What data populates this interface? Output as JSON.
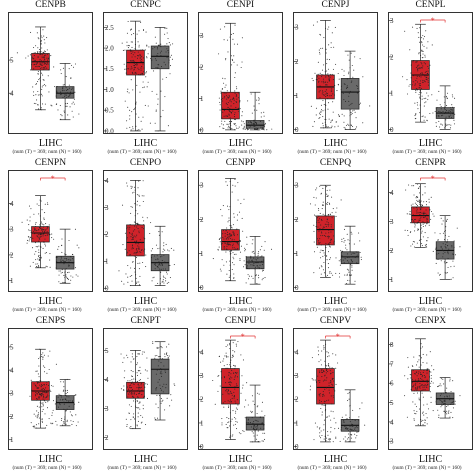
{
  "colors": {
    "tumor": "#d0232a",
    "normal": "#6a6a6a",
    "points": "#222222",
    "sig": "#e03030"
  },
  "chart_data": [
    {
      "type": "box",
      "title": "CENPB",
      "xlabel": "LIHC",
      "caption": "(num (T) = 369; num (N) = 160)",
      "ylim": [
        2.8,
        6.3
      ],
      "yticks": [
        4,
        5
      ],
      "tumor": {
        "min": 3.5,
        "q1": 4.7,
        "median": 4.95,
        "q3": 5.2,
        "max": 6.0
      },
      "normal": {
        "min": 3.2,
        "q1": 3.85,
        "median": 4.0,
        "q3": 4.2,
        "max": 4.9
      },
      "significant": false
    },
    {
      "type": "box",
      "title": "CENPC",
      "xlabel": "LIHC",
      "caption": "(num (T) = 369; num (N) = 160)",
      "ylim": [
        -0.05,
        2.75
      ],
      "yticks": [
        0.0,
        0.5,
        1.0,
        1.5,
        2.0,
        2.5
      ],
      "tick_format": "0.0",
      "tumor": {
        "min": 0.0,
        "q1": 1.35,
        "median": 1.65,
        "q3": 1.95,
        "max": 2.65
      },
      "normal": {
        "min": 0.0,
        "q1": 1.5,
        "median": 1.8,
        "q3": 2.05,
        "max": 2.5
      },
      "significant": false
    },
    {
      "type": "box",
      "title": "CENPI",
      "xlabel": "LIHC",
      "caption": "(num (T) = 369; num (N) = 160)",
      "ylim": [
        -0.1,
        3.6
      ],
      "yticks": [
        0,
        1,
        2,
        3
      ],
      "tumor": {
        "min": 0.0,
        "q1": 0.35,
        "median": 0.65,
        "q3": 1.2,
        "max": 3.4
      },
      "normal": {
        "min": 0.0,
        "q1": 0.05,
        "median": 0.15,
        "q3": 0.3,
        "max": 1.2
      },
      "significant": false
    },
    {
      "type": "box",
      "title": "CENPJ",
      "xlabel": "LIHC",
      "caption": "(num (T) = 369; num (N) = 160)",
      "ylim": [
        -0.1,
        3.3
      ],
      "yticks": [
        0,
        1,
        2,
        3
      ],
      "tumor": {
        "min": 0.05,
        "q1": 0.9,
        "median": 1.25,
        "q3": 1.6,
        "max": 3.2
      },
      "normal": {
        "min": 0.0,
        "q1": 0.6,
        "median": 1.1,
        "q3": 1.5,
        "max": 2.3
      },
      "significant": false
    },
    {
      "type": "box",
      "title": "CENPL",
      "xlabel": "LIHC",
      "caption": "(num (T) = 369; num (N) = 160)",
      "ylim": [
        -0.1,
        3.1
      ],
      "yticks": [
        0,
        1,
        2,
        3
      ],
      "tumor": {
        "min": 0.2,
        "q1": 1.1,
        "median": 1.5,
        "q3": 1.9,
        "max": 2.9
      },
      "normal": {
        "min": 0.0,
        "q1": 0.3,
        "median": 0.45,
        "q3": 0.6,
        "max": 1.2
      },
      "significant": true,
      "sig_label": "*"
    },
    {
      "type": "box",
      "title": "CENPN",
      "xlabel": "LIHC",
      "caption": "(num (T) = 369; num (N) = 160)",
      "ylim": [
        0.6,
        5.1
      ],
      "yticks": [
        1,
        2,
        3,
        4
      ],
      "tumor": {
        "min": 1.5,
        "q1": 2.5,
        "median": 2.85,
        "q3": 3.1,
        "max": 4.3
      },
      "normal": {
        "min": 0.9,
        "q1": 1.45,
        "median": 1.7,
        "q3": 1.95,
        "max": 3.0
      },
      "significant": true,
      "sig_label": "*"
    },
    {
      "type": "box",
      "title": "CENPO",
      "xlabel": "LIHC",
      "caption": "(num (T) = 369; num (N) = 160)",
      "ylim": [
        -0.1,
        4.2
      ],
      "yticks": [
        0,
        1,
        2,
        3,
        4
      ],
      "tumor": {
        "min": 0.1,
        "q1": 1.2,
        "median": 1.7,
        "q3": 2.35,
        "max": 4.0
      },
      "normal": {
        "min": 0.1,
        "q1": 0.65,
        "median": 0.95,
        "q3": 1.25,
        "max": 2.3
      },
      "significant": false
    },
    {
      "type": "box",
      "title": "CENPP",
      "xlabel": "LIHC",
      "caption": "(num (T) = 369; num (N) = 160)",
      "ylim": [
        -0.1,
        3.3
      ],
      "yticks": [
        0,
        1,
        2,
        3
      ],
      "tumor": {
        "min": 0.2,
        "q1": 1.1,
        "median": 1.35,
        "q3": 1.7,
        "max": 3.2
      },
      "normal": {
        "min": 0.1,
        "q1": 0.55,
        "median": 0.75,
        "q3": 0.9,
        "max": 1.5
      },
      "significant": false
    },
    {
      "type": "box",
      "title": "CENPQ",
      "xlabel": "LIHC",
      "caption": "(num (T) = 369; num (N) = 160)",
      "ylim": [
        -0.1,
        3.3
      ],
      "yticks": [
        0,
        1,
        2,
        3
      ],
      "tumor": {
        "min": 0.3,
        "q1": 1.25,
        "median": 1.7,
        "q3": 2.1,
        "max": 3.0
      },
      "normal": {
        "min": 0.1,
        "q1": 0.7,
        "median": 0.9,
        "q3": 1.05,
        "max": 1.8
      },
      "significant": false
    },
    {
      "type": "box",
      "title": "CENPR",
      "xlabel": "LIHC",
      "caption": "(num (T) = 369; num (N) = 160)",
      "ylim": [
        0.6,
        4.6
      ],
      "yticks": [
        1,
        2,
        3,
        4
      ],
      "tumor": {
        "min": 2.1,
        "q1": 2.95,
        "median": 3.2,
        "q3": 3.5,
        "max": 4.3
      },
      "normal": {
        "min": 1.0,
        "q1": 1.7,
        "median": 2.0,
        "q3": 2.3,
        "max": 3.2
      },
      "significant": true,
      "sig_label": "*"
    },
    {
      "type": "box",
      "title": "CENPS",
      "xlabel": "LIHC",
      "caption": "(num (T) = 369; num (N) = 160)",
      "ylim": [
        0.6,
        5.6
      ],
      "yticks": [
        1,
        2,
        3,
        4,
        5
      ],
      "tumor": {
        "min": 1.5,
        "q1": 2.7,
        "median": 3.1,
        "q3": 3.5,
        "max": 4.9
      },
      "normal": {
        "min": 1.6,
        "q1": 2.3,
        "median": 2.6,
        "q3": 2.9,
        "max": 3.6
      },
      "significant": false
    },
    {
      "type": "box",
      "title": "CENPT",
      "xlabel": "LIHC",
      "caption": "(num (T) = 369; num (N) = 160)",
      "ylim": [
        1.6,
        5.6
      ],
      "yticks": [
        2,
        3,
        4,
        5
      ],
      "tumor": {
        "min": 2.3,
        "q1": 3.35,
        "median": 3.6,
        "q3": 3.9,
        "max": 5.0
      },
      "normal": {
        "min": 2.6,
        "q1": 3.5,
        "median": 4.35,
        "q3": 4.7,
        "max": 5.3
      },
      "significant": false
    },
    {
      "type": "box",
      "title": "CENPU",
      "xlabel": "LIHC",
      "caption": "(num (T) = 369; num (N) = 160)",
      "ylim": [
        -0.1,
        4.8
      ],
      "yticks": [
        0,
        1,
        2,
        3,
        4
      ],
      "tumor": {
        "min": 0.3,
        "q1": 1.8,
        "median": 2.5,
        "q3": 3.3,
        "max": 4.5
      },
      "normal": {
        "min": 0.2,
        "q1": 0.7,
        "median": 0.95,
        "q3": 1.25,
        "max": 2.6
      },
      "significant": true,
      "sig_label": "*"
    },
    {
      "type": "box",
      "title": "CENPV",
      "xlabel": "LIHC",
      "caption": "(num (T) = 369; num (N) = 160)",
      "ylim": [
        -0.1,
        4.8
      ],
      "yticks": [
        0,
        1,
        2,
        3,
        4
      ],
      "tumor": {
        "min": 0.2,
        "q1": 1.8,
        "median": 2.5,
        "q3": 3.3,
        "max": 4.5
      },
      "normal": {
        "min": 0.2,
        "q1": 0.65,
        "median": 0.9,
        "q3": 1.15,
        "max": 2.4
      },
      "significant": true,
      "sig_label": "*"
    },
    {
      "type": "box",
      "title": "CENPX",
      "xlabel": "LIHC",
      "caption": "(num (T) = 369; num (N) = 160)",
      "ylim": [
        2.6,
        8.6
      ],
      "yticks": [
        3,
        4,
        5,
        6,
        7,
        8
      ],
      "tumor": {
        "min": 3.8,
        "q1": 5.6,
        "median": 6.1,
        "q3": 6.7,
        "max": 8.3
      },
      "normal": {
        "min": 4.2,
        "q1": 4.9,
        "median": 5.2,
        "q3": 5.5,
        "max": 6.3
      },
      "significant": false
    }
  ]
}
